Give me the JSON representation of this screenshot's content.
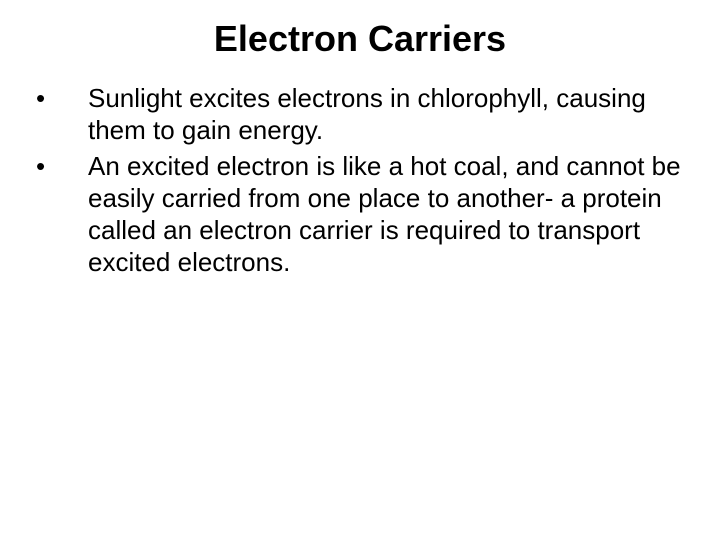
{
  "slide": {
    "title": "Electron Carriers",
    "title_fontsize": 36,
    "title_fontweight": "bold",
    "body_fontsize": 26,
    "background_color": "#ffffff",
    "text_color": "#000000",
    "bullets": [
      {
        "marker": "•",
        "text": "Sunlight excites electrons in chlorophyll, causing them to gain energy."
      },
      {
        "marker": "•",
        "text": "An excited electron is like a hot coal, and cannot be easily carried from one place to another- a protein called an electron carrier is required to transport excited electrons."
      }
    ]
  }
}
